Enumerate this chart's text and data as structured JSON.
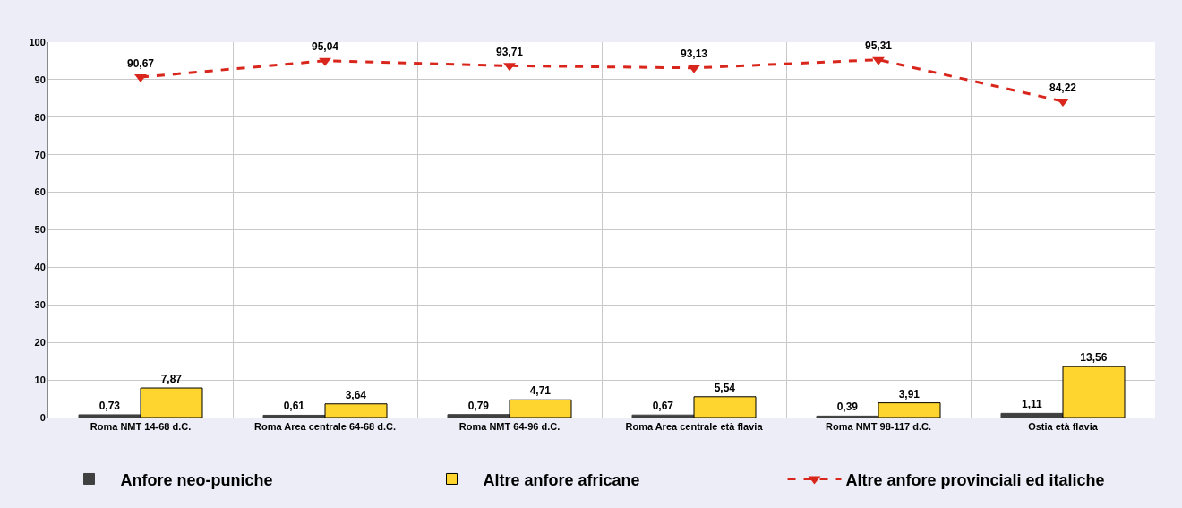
{
  "chart_data": {
    "type": "bar",
    "categories": [
      "Roma NMT 14-68 d.C.",
      "Roma Area centrale 64-68 d.C.",
      "Roma NMT 64-96 d.C.",
      "Roma Area centrale età flavia",
      "Roma NMT 98-117 d.C.",
      "Ostia età flavia"
    ],
    "series": [
      {
        "name": "Anfore neo-puniche",
        "color": "#404040",
        "values": [
          0.73,
          0.61,
          0.79,
          0.67,
          0.39,
          1.11
        ],
        "value_labels": [
          "0,73",
          "0,61",
          "0,79",
          "0,67",
          "0,39",
          "1,11"
        ]
      },
      {
        "name": "Altre anfore africane",
        "color": "#fdd52e",
        "values": [
          7.87,
          3.64,
          4.71,
          5.54,
          3.91,
          13.56
        ],
        "value_labels": [
          "7,87",
          "3,64",
          "4,71",
          "5,54",
          "3,91",
          "13,56"
        ]
      },
      {
        "name": "Altre anfore provinciali ed italiche",
        "type": "line",
        "color": "#d9261c",
        "line_style": "dashed",
        "marker": "triangle",
        "values": [
          90.67,
          95.04,
          93.71,
          93.13,
          95.31,
          84.22
        ],
        "value_labels": [
          "90,67",
          "95,04",
          "93,71",
          "93,13",
          "95,31",
          "84,22"
        ]
      }
    ],
    "ylim": [
      0,
      100
    ],
    "yticks": [
      0,
      10,
      20,
      30,
      40,
      50,
      60,
      70,
      80,
      90,
      100
    ],
    "grid": true,
    "legend": "bottom"
  }
}
